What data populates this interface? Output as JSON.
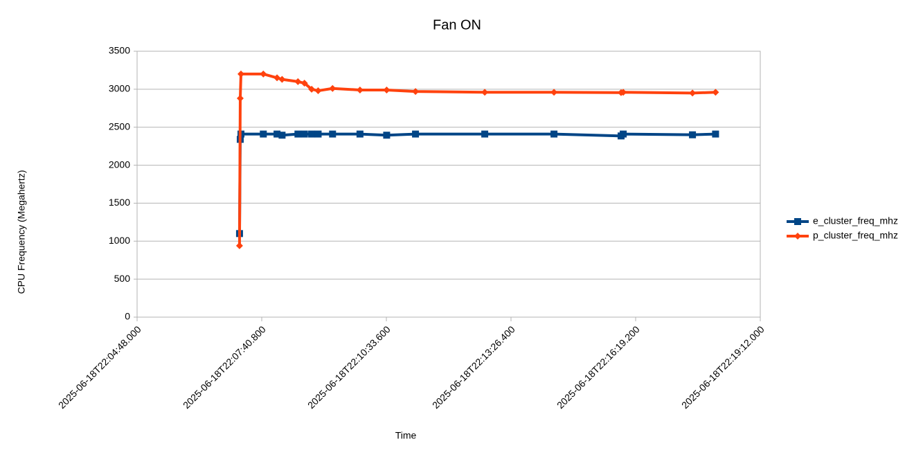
{
  "chart_data": {
    "type": "line",
    "title": "Fan ON",
    "xlabel": "Time",
    "ylabel": "CPU Frequency (Megahertz)",
    "x": [
      "2025-06-18T22:07:10",
      "2025-06-18T22:07:11",
      "2025-06-18T22:07:12",
      "2025-06-18T22:07:43",
      "2025-06-18T22:08:02",
      "2025-06-18T22:08:09",
      "2025-06-18T22:08:31",
      "2025-06-18T22:08:40",
      "2025-06-18T22:08:50",
      "2025-06-18T22:08:59",
      "2025-06-18T22:09:19",
      "2025-06-18T22:09:57",
      "2025-06-18T22:10:34",
      "2025-06-18T22:11:14",
      "2025-06-18T22:12:50",
      "2025-06-18T22:14:26",
      "2025-06-18T22:15:59",
      "2025-06-18T22:16:02",
      "2025-06-18T22:17:38",
      "2025-06-18T22:18:10"
    ],
    "series": [
      {
        "name": "e_cluster_freq_mhz",
        "color": "#004586",
        "marker": "square",
        "values": [
          1100,
          2340,
          2410,
          2410,
          2410,
          2395,
          2410,
          2410,
          2410,
          2410,
          2410,
          2410,
          2395,
          2410,
          2410,
          2410,
          2385,
          2410,
          2400,
          2410
        ]
      },
      {
        "name": "p_cluster_freq_mhz",
        "color": "#ff420e",
        "marker": "diamond",
        "values": [
          940,
          2880,
          3200,
          3200,
          3150,
          3130,
          3100,
          3080,
          3000,
          2980,
          3010,
          2990,
          2990,
          2970,
          2960,
          2960,
          2955,
          2960,
          2950,
          2960
        ]
      }
    ],
    "xlim": [
      "2025-06-18T22:04:48.000",
      "2025-06-18T22:19:12.000"
    ],
    "xticks": [
      "2025-06-18T22:04:48.000",
      "2025-06-18T22:07:40.800",
      "2025-06-18T22:10:33.600",
      "2025-06-18T22:13:26.400",
      "2025-06-18T22:16:19.200",
      "2025-06-18T22:19:12.000"
    ],
    "ylim": [
      0,
      3500
    ],
    "yticks": [
      0,
      500,
      1000,
      1500,
      2000,
      2500,
      3000,
      3500
    ],
    "grid": true,
    "legend": "right"
  }
}
